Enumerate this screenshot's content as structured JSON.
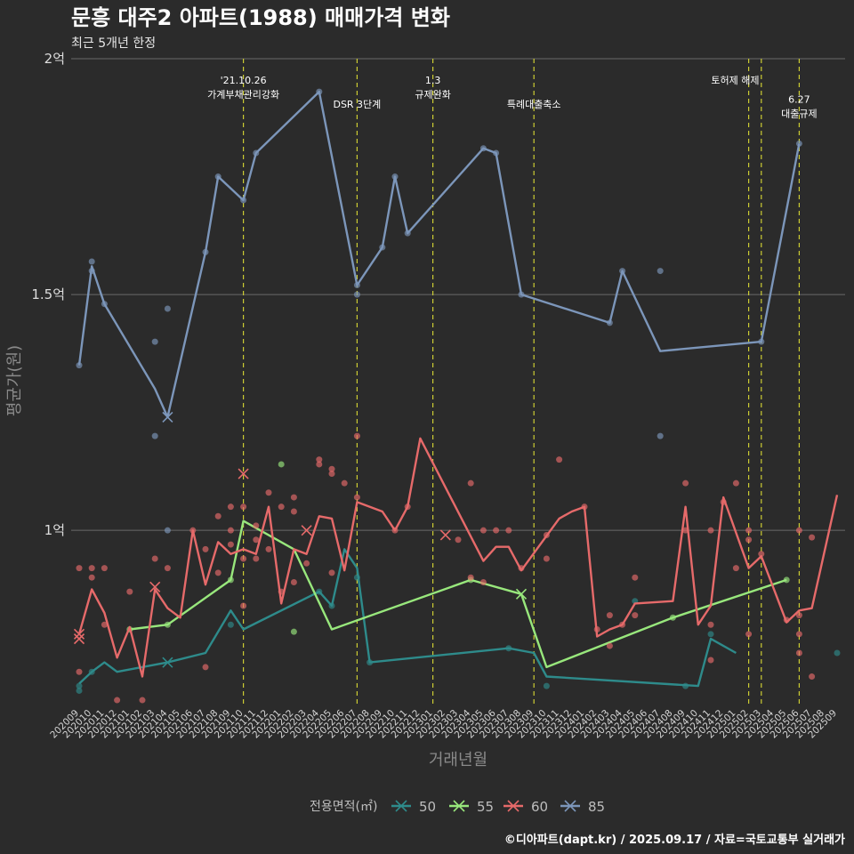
{
  "chart_data": {
    "type": "line",
    "title": "문흥 대주2 아파트(1988) 매매가격 변화",
    "subtitle": "최근 5개년 한정",
    "xlabel": "거래년월",
    "ylabel": "평균가(원)",
    "caption": "©디아파트(dapt.kr) / 2025.09.17 / 자료=국토교통부 실거래가",
    "legend": {
      "title": "전용면적(㎡)",
      "position": "bottom"
    },
    "grid": true,
    "ylim": [
      6250,
      20000
    ],
    "y_ticks": [
      {
        "value": 10000,
        "label": "1억"
      },
      {
        "value": 15000,
        "label": "1.5억"
      },
      {
        "value": 20000,
        "label": "2억"
      }
    ],
    "x_categories": [
      "202009",
      "202010",
      "202011",
      "202012",
      "202101",
      "202102",
      "202103",
      "202104",
      "202105",
      "202106",
      "202107",
      "202108",
      "202109",
      "202110",
      "202111",
      "202112",
      "202201",
      "202202",
      "202203",
      "202204",
      "202205",
      "202206",
      "202207",
      "202208",
      "202209",
      "202210",
      "202211",
      "202212",
      "202301",
      "202302",
      "202303",
      "202304",
      "202305",
      "202306",
      "202307",
      "202308",
      "202309",
      "202310",
      "202311",
      "202312",
      "202401",
      "202402",
      "202403",
      "202404",
      "202405",
      "202406",
      "202407",
      "202408",
      "202409",
      "202410",
      "202411",
      "202412",
      "202501",
      "202502",
      "202503",
      "202504",
      "202505",
      "202506",
      "202507",
      "202508",
      "202509"
    ],
    "x_tick_labels": [
      "202009",
      "202010",
      "202011",
      "202012",
      "202101",
      "202102",
      "202103",
      "202104",
      "202105",
      "202106",
      "202107",
      "202108",
      "202109",
      "202110",
      "202111",
      "202112",
      "202201",
      "202202",
      "202203",
      "202204",
      "202205",
      "202206",
      "202207",
      "202208",
      "202209",
      "202210",
      "202211",
      "202212",
      "202301",
      "202302",
      "202303",
      "202304",
      "202305",
      "202306",
      "202307",
      "202308",
      "202309",
      "202310",
      "202311",
      "202312",
      "202401",
      "202402",
      "202403",
      "202404",
      "202405",
      "202406",
      "202407",
      "202408",
      "202409",
      "202410",
      "202411",
      "202412",
      "202501",
      "202502",
      "202503",
      "202504",
      "202505",
      "202506",
      "202507",
      "202508",
      "202509"
    ],
    "events": [
      {
        "x": "202110",
        "lines": [
          "'21.10.26",
          "가계부채관리강화"
        ],
        "row": 0
      },
      {
        "x": "202207",
        "lines": [
          "DSR 3단계"
        ],
        "row": 1
      },
      {
        "x": "202301",
        "lines": [
          "1.3",
          "규제완화"
        ],
        "row": 0
      },
      {
        "x": "202309",
        "lines": [
          "특례대출축소"
        ],
        "row": 1
      },
      {
        "x": "202502",
        "lines": [
          "토허제 해제"
        ],
        "row": 0,
        "anchor": "start",
        "label_x": "202501"
      },
      {
        "x": "202503",
        "lines": [],
        "row": 0
      },
      {
        "x": "202506",
        "lines": [
          "6.27",
          "대출규제"
        ],
        "row": 0.8
      }
    ],
    "series": [
      {
        "name": "50",
        "color": "#2e8b8b",
        "line": [
          [
            "202009",
            6750
          ],
          [
            "202010",
            7000
          ],
          [
            "202011",
            7200
          ],
          [
            "202012",
            7000
          ],
          [
            "202104",
            7200
          ],
          [
            "202107",
            7400
          ],
          [
            "202109",
            8300
          ],
          [
            "202110",
            7900
          ],
          [
            "202204",
            8700
          ],
          [
            "202205",
            8400
          ],
          [
            "202206",
            9600
          ],
          [
            "202207",
            9200
          ],
          [
            "202208",
            7200
          ],
          [
            "202307",
            7500
          ],
          [
            "202309",
            7400
          ],
          [
            "202310",
            6900
          ],
          [
            "202410",
            6700
          ],
          [
            "202411",
            7700
          ],
          [
            "202501",
            7400
          ]
        ],
        "points": [
          [
            "202009",
            6600
          ],
          [
            "202009",
            6700
          ],
          [
            "202010",
            7000
          ],
          [
            "202109",
            8000
          ],
          [
            "202204",
            8700
          ],
          [
            "202205",
            8400
          ],
          [
            "202207",
            9000
          ],
          [
            "202208",
            7200
          ],
          [
            "202307",
            7500
          ],
          [
            "202310",
            6700
          ],
          [
            "202405",
            8500
          ],
          [
            "202409",
            6700
          ],
          [
            "202411",
            7800
          ],
          [
            "202509",
            7400
          ]
        ],
        "x_marks": [
          [
            "202104",
            7200
          ]
        ]
      },
      {
        "name": "55",
        "color": "#98e77c",
        "line": [
          [
            "202101",
            7900
          ],
          [
            "202104",
            8000
          ],
          [
            "202109",
            8950
          ],
          [
            "202110",
            10200
          ],
          [
            "202202",
            9600
          ],
          [
            "202205",
            7900
          ],
          [
            "202304",
            8950
          ],
          [
            "202308",
            8650
          ],
          [
            "202310",
            7100
          ],
          [
            "202408",
            8150
          ],
          [
            "202505",
            8950
          ]
        ],
        "points": [
          [
            "202101",
            7900
          ],
          [
            "202104",
            8000
          ],
          [
            "202109",
            8950
          ],
          [
            "202201",
            11400
          ],
          [
            "202202",
            7850
          ],
          [
            "202304",
            8950
          ],
          [
            "202408",
            8150
          ],
          [
            "202505",
            8950
          ]
        ],
        "x_marks": [
          [
            "202308",
            8650
          ]
        ]
      },
      {
        "name": "60",
        "color": "#e66a6a",
        "line": [
          [
            "202009",
            7800
          ],
          [
            "202010",
            8750
          ],
          [
            "202011",
            8250
          ],
          [
            "202012",
            7300
          ],
          [
            "202101",
            7950
          ],
          [
            "202102",
            6900
          ],
          [
            "202103",
            8750
          ],
          [
            "202104",
            8350
          ],
          [
            "202105",
            8150
          ],
          [
            "202106",
            10000
          ],
          [
            "202107",
            8850
          ],
          [
            "202108",
            9750
          ],
          [
            "202109",
            9500
          ],
          [
            "202110",
            9600
          ],
          [
            "202111",
            9500
          ],
          [
            "202112",
            10500
          ],
          [
            "202201",
            8450
          ],
          [
            "202202",
            9600
          ],
          [
            "202203",
            9500
          ],
          [
            "202204",
            10300
          ],
          [
            "202205",
            10250
          ],
          [
            "202206",
            9150
          ],
          [
            "202207",
            10600
          ],
          [
            "202209",
            10400
          ],
          [
            "202210",
            10000
          ],
          [
            "202211",
            10500
          ],
          [
            "202212",
            11950
          ],
          [
            "202305",
            9350
          ],
          [
            "202306",
            9650
          ],
          [
            "202307",
            9650
          ],
          [
            "202308",
            9150
          ],
          [
            "202311",
            10250
          ],
          [
            "202312",
            10400
          ],
          [
            "202401",
            10500
          ],
          [
            "202402",
            7750
          ],
          [
            "202403",
            7900
          ],
          [
            "202404",
            8000
          ],
          [
            "202405",
            8450
          ],
          [
            "202408",
            8500
          ],
          [
            "202409",
            10500
          ],
          [
            "202410",
            8000
          ],
          [
            "202411",
            8400
          ],
          [
            "202412",
            10700
          ],
          [
            "202502",
            9200
          ],
          [
            "202503",
            9450
          ],
          [
            "202505",
            8050
          ],
          [
            "202506",
            8300
          ],
          [
            "202507",
            8350
          ],
          [
            "202509",
            10750
          ]
        ],
        "points": [
          [
            "202009",
            9200
          ],
          [
            "202009",
            7000
          ],
          [
            "202010",
            9200
          ],
          [
            "202010",
            9000
          ],
          [
            "202011",
            9200
          ],
          [
            "202011",
            8000
          ],
          [
            "202012",
            6400
          ],
          [
            "202101",
            8700
          ],
          [
            "202102",
            6400
          ],
          [
            "202103",
            9400
          ],
          [
            "202104",
            9200
          ],
          [
            "202106",
            10000
          ],
          [
            "202107",
            9600
          ],
          [
            "202107",
            7100
          ],
          [
            "202108",
            10300
          ],
          [
            "202108",
            9100
          ],
          [
            "202109",
            10500
          ],
          [
            "202109",
            10000
          ],
          [
            "202109",
            9700
          ],
          [
            "202110",
            10500
          ],
          [
            "202110",
            9400
          ],
          [
            "202110",
            8400
          ],
          [
            "202111",
            10100
          ],
          [
            "202111",
            9800
          ],
          [
            "202111",
            9400
          ],
          [
            "202112",
            10800
          ],
          [
            "202112",
            9600
          ],
          [
            "202201",
            10500
          ],
          [
            "202201",
            8700
          ],
          [
            "202202",
            10700
          ],
          [
            "202202",
            10400
          ],
          [
            "202202",
            8900
          ],
          [
            "202203",
            9300
          ],
          [
            "202204",
            11500
          ],
          [
            "202204",
            11400
          ],
          [
            "202205",
            11300
          ],
          [
            "202205",
            11200
          ],
          [
            "202205",
            9100
          ],
          [
            "202206",
            11000
          ],
          [
            "202207",
            12000
          ],
          [
            "202207",
            10700
          ],
          [
            "202210",
            10000
          ],
          [
            "202211",
            10500
          ],
          [
            "202303",
            9800
          ],
          [
            "202304",
            11000
          ],
          [
            "202304",
            9000
          ],
          [
            "202305",
            10000
          ],
          [
            "202305",
            8900
          ],
          [
            "202306",
            10000
          ],
          [
            "202307",
            10000
          ],
          [
            "202308",
            9200
          ],
          [
            "202310",
            9900
          ],
          [
            "202310",
            9400
          ],
          [
            "202311",
            11500
          ],
          [
            "202401",
            10500
          ],
          [
            "202402",
            7900
          ],
          [
            "202403",
            8200
          ],
          [
            "202403",
            7550
          ],
          [
            "202404",
            8000
          ],
          [
            "202405",
            9000
          ],
          [
            "202405",
            8200
          ],
          [
            "202409",
            11000
          ],
          [
            "202409",
            10000
          ],
          [
            "202411",
            10000
          ],
          [
            "202411",
            8000
          ],
          [
            "202411",
            7250
          ],
          [
            "202412",
            10600
          ],
          [
            "202501",
            11000
          ],
          [
            "202501",
            9200
          ],
          [
            "202502",
            10000
          ],
          [
            "202502",
            9800
          ],
          [
            "202502",
            7800
          ],
          [
            "202503",
            9500
          ],
          [
            "202505",
            8100
          ],
          [
            "202506",
            10000
          ],
          [
            "202506",
            8200
          ],
          [
            "202506",
            7800
          ],
          [
            "202506",
            7400
          ],
          [
            "202507",
            9850
          ],
          [
            "202507",
            6900
          ]
        ],
        "x_marks": [
          [
            "202009",
            7800
          ],
          [
            "202009",
            7700
          ],
          [
            "202103",
            8800
          ],
          [
            "202110",
            11200
          ],
          [
            "202203",
            10000
          ],
          [
            "202302",
            9900
          ]
        ]
      },
      {
        "name": "85",
        "color": "#7c96ba",
        "line": [
          [
            "202009",
            13500
          ],
          [
            "202010",
            15600
          ],
          [
            "202011",
            14800
          ],
          [
            "202103",
            13000
          ],
          [
            "202104",
            12400
          ],
          [
            "202107",
            15900
          ],
          [
            "202108",
            17500
          ],
          [
            "202110",
            17000
          ],
          [
            "202111",
            18000
          ],
          [
            "202204",
            19300
          ],
          [
            "202207",
            15200
          ],
          [
            "202209",
            16000
          ],
          [
            "202210",
            17500
          ],
          [
            "202211",
            16300
          ],
          [
            "202305",
            18100
          ],
          [
            "202306",
            18000
          ],
          [
            "202308",
            15000
          ],
          [
            "202403",
            14400
          ],
          [
            "202404",
            15500
          ],
          [
            "202407",
            13800
          ],
          [
            "202503",
            14000
          ],
          [
            "202506",
            18200
          ]
        ],
        "points": [
          [
            "202009",
            13500
          ],
          [
            "202010",
            15700
          ],
          [
            "202010",
            15500
          ],
          [
            "202011",
            14800
          ],
          [
            "202103",
            14000
          ],
          [
            "202103",
            12000
          ],
          [
            "202104",
            14700
          ],
          [
            "202104",
            10000
          ],
          [
            "202107",
            15900
          ],
          [
            "202108",
            17500
          ],
          [
            "202110",
            17000
          ],
          [
            "202111",
            18000
          ],
          [
            "202204",
            19300
          ],
          [
            "202207",
            15200
          ],
          [
            "202207",
            15000
          ],
          [
            "202209",
            16000
          ],
          [
            "202210",
            17500
          ],
          [
            "202211",
            16300
          ],
          [
            "202305",
            18100
          ],
          [
            "202306",
            18000
          ],
          [
            "202308",
            15000
          ],
          [
            "202403",
            14400
          ],
          [
            "202404",
            15500
          ],
          [
            "202407",
            15500
          ],
          [
            "202407",
            12000
          ],
          [
            "202503",
            14000
          ],
          [
            "202506",
            18200
          ]
        ],
        "x_marks": [
          [
            "202104",
            12400
          ]
        ]
      }
    ]
  }
}
